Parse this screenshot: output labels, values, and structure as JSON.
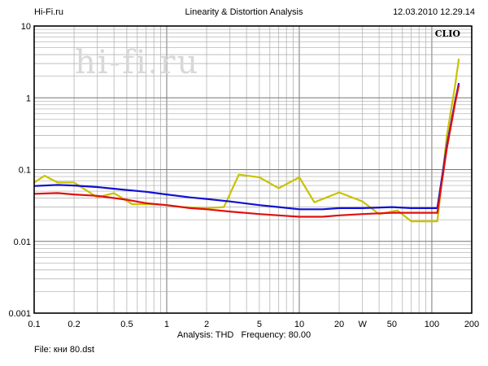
{
  "header": {
    "left": "Hi-Fi.ru",
    "center": "Linearity & Distortion Analysis",
    "right": "12.03.2010 12.29.14"
  },
  "badge": "CLIO",
  "watermark": "hi-fi.ru",
  "footer": {
    "analysis": "Analysis: THD   Frequency: 80.00",
    "file": "File: кни 80.dst"
  },
  "chart_data": {
    "type": "line",
    "title": "Linearity & Distortion Analysis",
    "xscale": "log",
    "yscale": "log",
    "xlim": [
      0.1,
      200
    ],
    "ylim": [
      0.001,
      10
    ],
    "grid": true,
    "x_ticks": [
      "0.1",
      "0.2",
      "0.5",
      "1",
      "2",
      "5",
      "10",
      "20",
      "W",
      "50",
      "100",
      "200"
    ],
    "y_ticks": [
      "0.001",
      "0.01",
      "0.1",
      "1",
      "10"
    ],
    "series": [
      {
        "color": "#c9c200",
        "x": [
          0.1,
          0.12,
          0.15,
          0.2,
          0.3,
          0.4,
          0.55,
          0.75,
          1.0,
          1.3,
          2.0,
          2.7,
          3.5,
          5.0,
          7.0,
          10.0,
          13.0,
          20.0,
          30.0,
          40.0,
          55.0,
          70.0,
          100.0,
          110.0,
          130.0,
          150.0,
          160.0
        ],
        "y": [
          0.066,
          0.082,
          0.066,
          0.066,
          0.041,
          0.047,
          0.033,
          0.033,
          0.032,
          0.03,
          0.029,
          0.03,
          0.085,
          0.078,
          0.055,
          0.078,
          0.035,
          0.048,
          0.036,
          0.024,
          0.027,
          0.019,
          0.019,
          0.019,
          0.3,
          1.5,
          3.5
        ]
      },
      {
        "color": "#1010d0",
        "x": [
          0.1,
          0.15,
          0.2,
          0.3,
          0.5,
          0.7,
          1.0,
          1.5,
          2.0,
          3.0,
          5.0,
          7.0,
          10.0,
          15.0,
          20.0,
          30.0,
          50.0,
          70.0,
          100.0,
          110.0,
          130.0,
          150.0,
          160.0
        ],
        "y": [
          0.059,
          0.061,
          0.06,
          0.057,
          0.052,
          0.049,
          0.045,
          0.041,
          0.039,
          0.036,
          0.032,
          0.03,
          0.028,
          0.028,
          0.029,
          0.029,
          0.03,
          0.029,
          0.029,
          0.029,
          0.22,
          0.9,
          1.6
        ]
      },
      {
        "color": "#e01010",
        "x": [
          0.1,
          0.15,
          0.2,
          0.3,
          0.5,
          0.7,
          1.0,
          1.5,
          2.0,
          3.0,
          5.0,
          7.0,
          10.0,
          15.0,
          20.0,
          30.0,
          50.0,
          70.0,
          100.0,
          110.0,
          130.0,
          150.0,
          160.0
        ],
        "y": [
          0.046,
          0.047,
          0.045,
          0.043,
          0.038,
          0.034,
          0.032,
          0.029,
          0.028,
          0.026,
          0.024,
          0.023,
          0.022,
          0.022,
          0.023,
          0.024,
          0.025,
          0.025,
          0.025,
          0.025,
          0.2,
          0.85,
          1.5
        ]
      }
    ]
  }
}
